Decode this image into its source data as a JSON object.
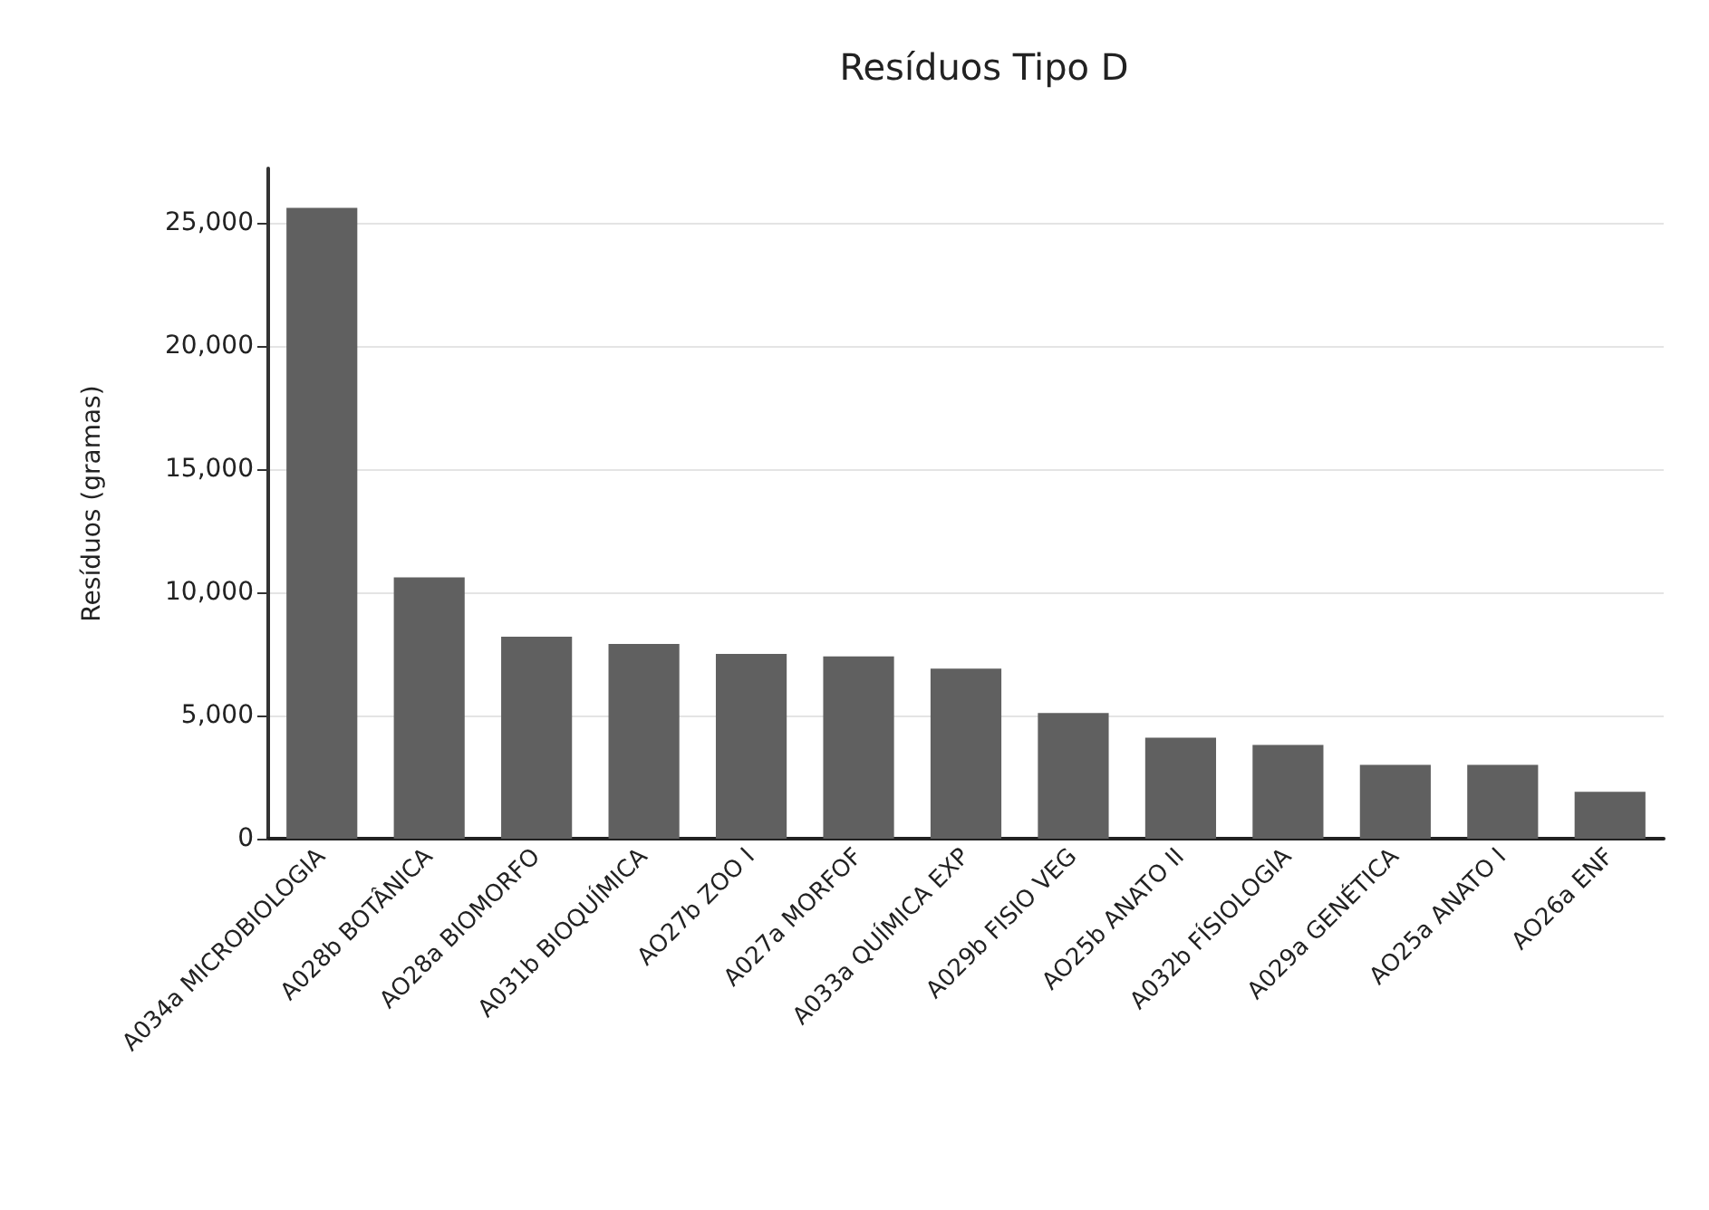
{
  "chart_data": {
    "type": "bar",
    "title": "Resíduos Tipo D",
    "ylabel": "Resíduos (gramas)",
    "categories": [
      "A034a MICROBIOLOGIA",
      "A028b BOTÂNICA",
      "AO28a BIOMORFO",
      "A031b BIOQUÍMICA",
      "AO27b ZOO I",
      "A027a MORFOF",
      "A033a QUÍMICA EXP",
      "A029b FISIO VEG",
      "AO25b ANATO II",
      "A032b FÍSIOLOGIA",
      "A029a GENÉTICA",
      "AO25a ANATO I",
      "AO26a ENF"
    ],
    "values": [
      25600,
      10600,
      8200,
      7900,
      7500,
      7400,
      6900,
      5100,
      4100,
      3800,
      3000,
      3000,
      1900
    ],
    "color": "#606060",
    "ylim": [
      0,
      27200
    ],
    "yticks": [
      {
        "value": 0,
        "label": "0"
      },
      {
        "value": 5000,
        "label": "5,000"
      },
      {
        "value": 10000,
        "label": "10,000"
      },
      {
        "value": 15000,
        "label": "15,000"
      },
      {
        "value": 20000,
        "label": "20,000"
      },
      {
        "value": 25000,
        "label": "25,000"
      }
    ],
    "grid": "y"
  }
}
